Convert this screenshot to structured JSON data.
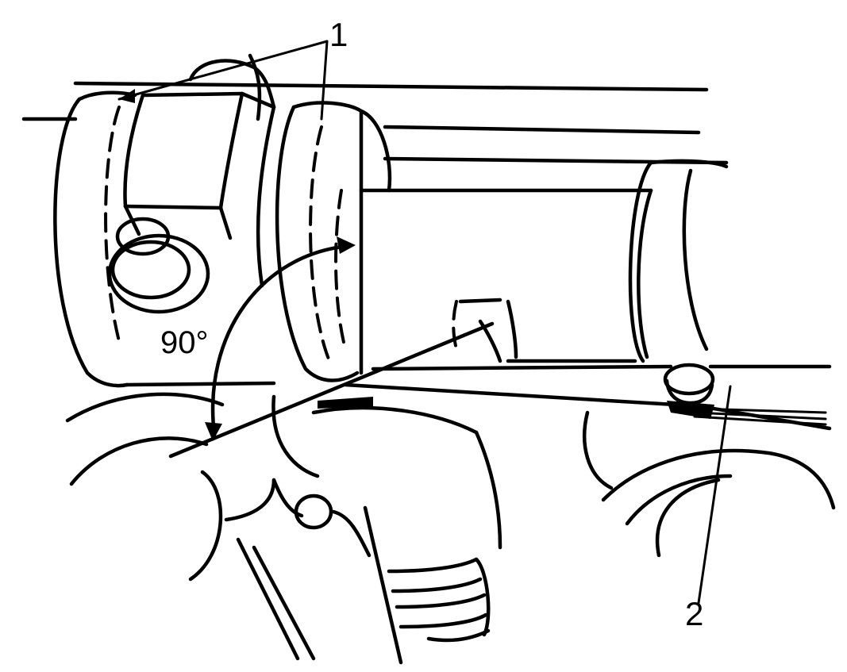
{
  "figure": {
    "callouts": [
      {
        "id": "1",
        "text": "1"
      },
      {
        "id": "2",
        "text": "2"
      }
    ],
    "angle_label": "90°"
  }
}
